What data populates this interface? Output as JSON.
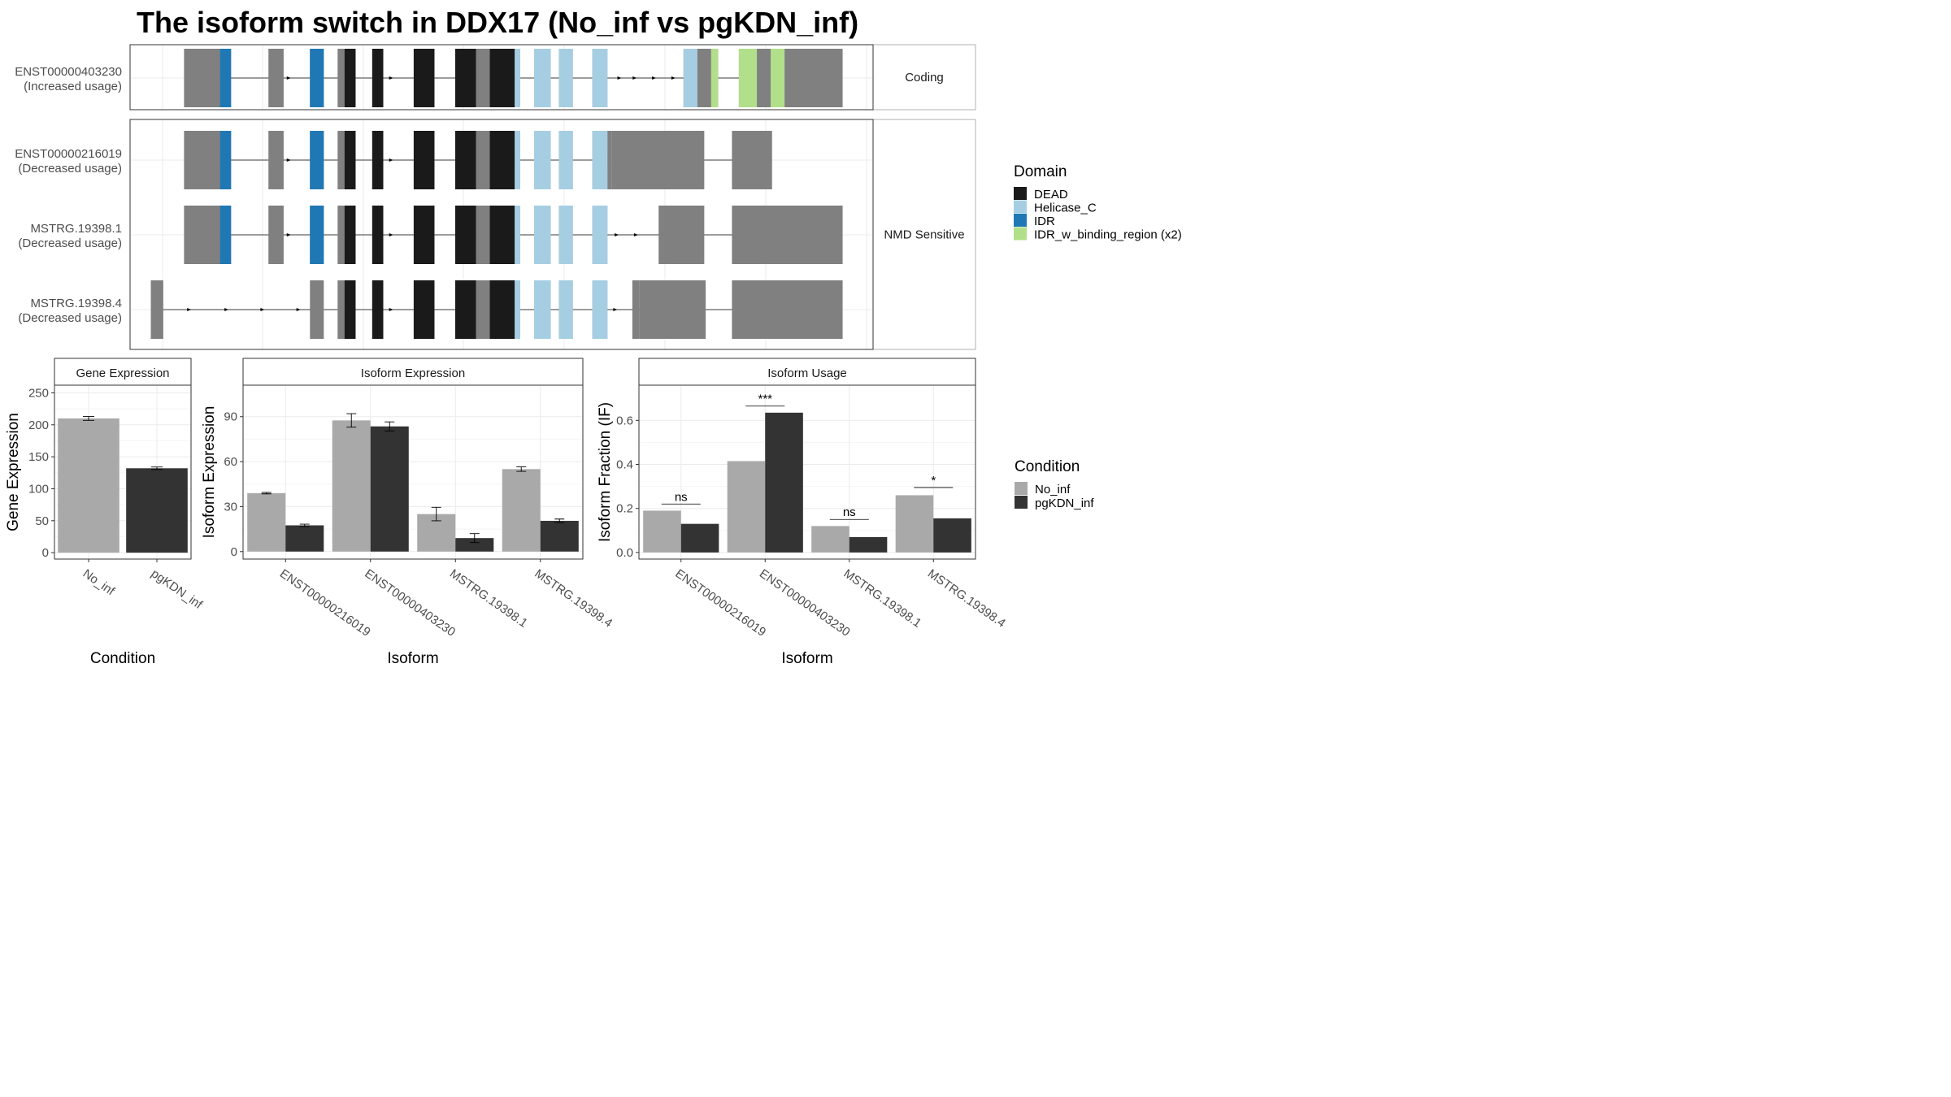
{
  "title": "The isoform switch in DDX17 (No_inf vs pgKDN_inf)",
  "colors": {
    "DEAD": "#1a1a1a",
    "Helicase_C": "#a6cee3",
    "IDR": "#1f78b4",
    "IDR_w_binding_region (x2)": "#b2df8a",
    "exon": "#808080",
    "No_inf": "#a9a9a9",
    "pgKDN_inf": "#333333"
  },
  "legend_domain": {
    "title": "Domain",
    "items": [
      "DEAD",
      "Helicase_C",
      "IDR",
      "IDR_w_binding_region (x2)"
    ]
  },
  "legend_condition": {
    "title": "Condition",
    "items": [
      "No_inf",
      "pgKDN_inf"
    ]
  },
  "isoform_structures": [
    {
      "id": "ENST00000403230",
      "usage": "(Increased usage)",
      "group": "Coding",
      "exons": [
        [
          0.9,
          3.5
        ],
        [
          3.5,
          4.3
        ],
        [
          7,
          8.1
        ],
        [
          10,
          11
        ],
        [
          12,
          12.5
        ],
        [
          12.5,
          13.3
        ],
        [
          14.5,
          15.3
        ],
        [
          17.5,
          19
        ],
        [
          20.5,
          22
        ],
        [
          22,
          23
        ],
        [
          23,
          24.8
        ],
        [
          24.8,
          25.2
        ],
        [
          26.2,
          27.4
        ],
        [
          28,
          29
        ],
        [
          30.4,
          31.5
        ],
        [
          37,
          38
        ],
        [
          38,
          39
        ],
        [
          39,
          39.5
        ],
        [
          41,
          42.3
        ],
        [
          42.3,
          43.3
        ],
        [
          43.3,
          44.3
        ],
        [
          44.3,
          48.5
        ]
      ],
      "domains": [
        [
          "IDR",
          3.5,
          4.3
        ],
        [
          "IDR",
          10,
          11
        ],
        [
          "DEAD",
          12.5,
          13.3
        ],
        [
          "DEAD",
          14.5,
          15.3
        ],
        [
          "DEAD",
          17.5,
          19
        ],
        [
          "DEAD",
          20.5,
          22
        ],
        [
          "DEAD",
          23,
          24.8
        ],
        [
          "Helicase_C",
          24.8,
          25.2
        ],
        [
          "Helicase_C",
          26.2,
          27.4
        ],
        [
          "Helicase_C",
          28,
          29
        ],
        [
          "Helicase_C",
          30.4,
          31.5
        ],
        [
          "Helicase_C",
          37,
          38
        ],
        [
          "IDR_w_binding_region (x2)",
          39,
          39.5
        ],
        [
          "IDR_w_binding_region (x2)",
          41,
          42.3
        ],
        [
          "IDR_w_binding_region (x2)",
          43.3,
          44.3
        ]
      ],
      "coding": [
        [
          2.5,
          3.5
        ],
        [
          44.3,
          48.5
        ]
      ],
      "arrows": [
        8.5,
        15.9,
        18.7,
        32.4,
        33.5,
        34.9,
        36.3
      ]
    },
    {
      "id": "ENST00000216019",
      "usage": "(Decreased usage)",
      "group": "NMD Sensitive",
      "exons": [
        [
          0.9,
          3.5
        ],
        [
          3.5,
          4.3
        ],
        [
          7,
          8.1
        ],
        [
          10,
          11
        ],
        [
          12,
          12.5
        ],
        [
          12.5,
          13.3
        ],
        [
          14.5,
          15.3
        ],
        [
          17.5,
          19
        ],
        [
          20.5,
          22
        ],
        [
          22,
          23
        ],
        [
          23,
          24.8
        ],
        [
          24.8,
          25.2
        ],
        [
          26.2,
          27.4
        ],
        [
          28,
          29
        ],
        [
          30.4,
          31.5
        ],
        [
          31.5,
          31.8
        ],
        [
          31.8,
          38.5
        ],
        [
          40.5,
          43.4
        ]
      ],
      "domains": [
        [
          "IDR",
          3.5,
          4.3
        ],
        [
          "IDR",
          10,
          11
        ],
        [
          "DEAD",
          12.5,
          13.3
        ],
        [
          "DEAD",
          14.5,
          15.3
        ],
        [
          "DEAD",
          17.5,
          19
        ],
        [
          "DEAD",
          20.5,
          22
        ],
        [
          "DEAD",
          23,
          24.8
        ],
        [
          "Helicase_C",
          24.8,
          25.2
        ],
        [
          "Helicase_C",
          26.2,
          27.4
        ],
        [
          "Helicase_C",
          28,
          29
        ],
        [
          "Helicase_C",
          30.4,
          31.5
        ]
      ],
      "coding": [
        [
          2.5,
          3.5
        ],
        [
          31.8,
          38.5
        ],
        [
          40.5,
          43.4
        ]
      ],
      "arrows": [
        8.5,
        15.9,
        18.7
      ]
    },
    {
      "id": "MSTRG.19398.1",
      "usage": "(Decreased usage)",
      "group": "NMD Sensitive",
      "exons": [
        [
          0.9,
          3.5
        ],
        [
          3.5,
          4.3
        ],
        [
          7,
          8.1
        ],
        [
          10,
          11
        ],
        [
          12,
          12.5
        ],
        [
          12.5,
          13.3
        ],
        [
          14.5,
          15.3
        ],
        [
          17.5,
          19
        ],
        [
          20.5,
          22
        ],
        [
          22,
          23
        ],
        [
          23,
          24.8
        ],
        [
          24.8,
          25.2
        ],
        [
          26.2,
          27.4
        ],
        [
          28,
          29
        ],
        [
          30.4,
          31.5
        ],
        [
          35.2,
          35.6
        ],
        [
          35.6,
          38.5
        ],
        [
          40.5,
          48.5
        ]
      ],
      "domains": [
        [
          "IDR",
          3.5,
          4.3
        ],
        [
          "IDR",
          10,
          11
        ],
        [
          "DEAD",
          12.5,
          13.3
        ],
        [
          "DEAD",
          14.5,
          15.3
        ],
        [
          "DEAD",
          17.5,
          19
        ],
        [
          "DEAD",
          20.5,
          22
        ],
        [
          "DEAD",
          23,
          24.8
        ],
        [
          "Helicase_C",
          24.8,
          25.2
        ],
        [
          "Helicase_C",
          26.2,
          27.4
        ],
        [
          "Helicase_C",
          28,
          29
        ],
        [
          "Helicase_C",
          30.4,
          31.5
        ]
      ],
      "coding": [
        [
          2.5,
          3.5
        ],
        [
          35.6,
          38.5
        ],
        [
          40.5,
          48.5
        ]
      ],
      "arrows": [
        8.5,
        15.9,
        18.7,
        32.2,
        33.6
      ]
    },
    {
      "id": "MSTRG.19398.4",
      "usage": "(Decreased usage)",
      "group": "NMD Sensitive",
      "exons": [
        [
          -1.5,
          -0.6
        ],
        [
          10,
          11
        ],
        [
          12,
          12.5
        ],
        [
          12.5,
          13.3
        ],
        [
          14.5,
          15.3
        ],
        [
          17.5,
          19
        ],
        [
          20.5,
          22
        ],
        [
          22,
          23
        ],
        [
          23,
          24.8
        ],
        [
          24.8,
          25.2
        ],
        [
          26.2,
          27.4
        ],
        [
          28,
          29
        ],
        [
          30.4,
          31.5
        ],
        [
          33.3,
          33.8
        ],
        [
          33.8,
          38.6
        ],
        [
          40.5,
          48.5
        ]
      ],
      "domains": [
        [
          "DEAD",
          12.5,
          13.3
        ],
        [
          "DEAD",
          14.5,
          15.3
        ],
        [
          "DEAD",
          17.5,
          19
        ],
        [
          "DEAD",
          20.5,
          22
        ],
        [
          "DEAD",
          23,
          24.8
        ],
        [
          "Helicase_C",
          24.8,
          25.2
        ],
        [
          "Helicase_C",
          26.2,
          27.4
        ],
        [
          "Helicase_C",
          28,
          29
        ],
        [
          "Helicase_C",
          30.4,
          31.5
        ]
      ],
      "coding": [
        [
          -1.2,
          -0.6
        ],
        [
          33.8,
          38.6
        ],
        [
          40.5,
          48.5
        ]
      ],
      "arrows": [
        1.3,
        4,
        6.6,
        9.2,
        15.9,
        18.7,
        32.1
      ]
    }
  ],
  "chart_data": [
    {
      "type": "bar",
      "title": "Gene Expression",
      "xlabel": "Condition",
      "ylabel": "Gene Expression",
      "categories": [
        "No_inf",
        "pgKDN_inf"
      ],
      "values": [
        210,
        132
      ],
      "errors": [
        3,
        2
      ],
      "ylim": [
        -10,
        262
      ],
      "yticks": [
        0,
        50,
        100,
        150,
        200,
        250
      ]
    },
    {
      "type": "bar",
      "title": "Isoform Expression",
      "xlabel": "Isoform",
      "ylabel": "Isoform Expression",
      "categories": [
        "ENST00000216019",
        "ENST00000403230",
        "MSTRG.19398.1",
        "MSTRG.19398.4"
      ],
      "series": [
        {
          "name": "No_inf",
          "values": [
            39,
            87.5,
            25,
            55
          ],
          "errors": [
            0.5,
            4.5,
            4.5,
            1.5
          ]
        },
        {
          "name": "pgKDN_inf",
          "values": [
            17.5,
            83.5,
            9,
            20.5
          ],
          "errors": [
            0.8,
            3,
            3,
            1.2
          ]
        }
      ],
      "ylim": [
        -5,
        111
      ],
      "yticks": [
        0,
        30,
        60,
        90
      ]
    },
    {
      "type": "bar",
      "title": "Isoform Usage",
      "xlabel": "Isoform",
      "ylabel": "Isoform Fraction (IF)",
      "categories": [
        "ENST00000216019",
        "ENST00000403230",
        "MSTRG.19398.1",
        "MSTRG.19398.4"
      ],
      "series": [
        {
          "name": "No_inf",
          "values": [
            0.19,
            0.415,
            0.12,
            0.26
          ]
        },
        {
          "name": "pgKDN_inf",
          "values": [
            0.13,
            0.635,
            0.07,
            0.155
          ]
        }
      ],
      "significance": [
        "ns",
        "***",
        "ns",
        "*"
      ],
      "sig_y": [
        0.22,
        0.665,
        0.15,
        0.295
      ],
      "ylim": [
        -0.03,
        0.76
      ],
      "yticks": [
        0.0,
        0.2,
        0.4,
        0.6
      ]
    }
  ]
}
